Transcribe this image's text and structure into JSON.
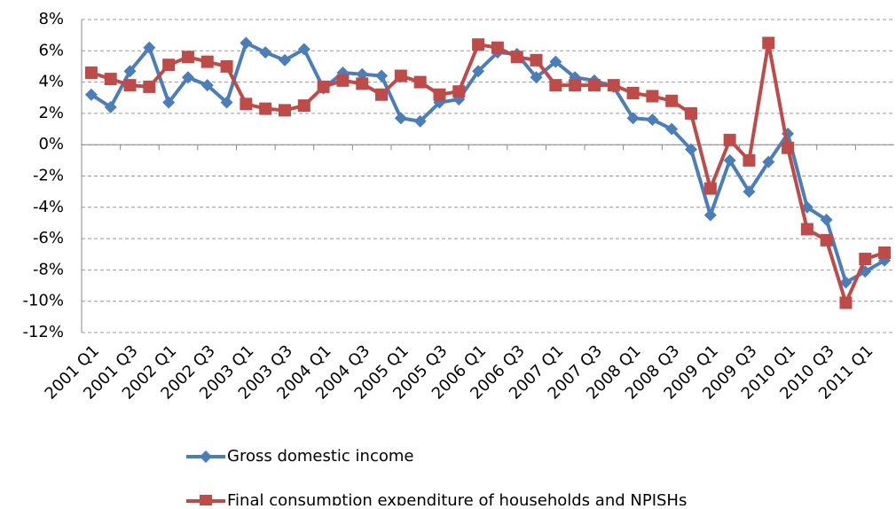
{
  "chart_data": {
    "type": "line",
    "categories": [
      "2001 Q1",
      null,
      "2001 Q3",
      null,
      "2002 Q1",
      null,
      "2002 Q3",
      null,
      "2003 Q1",
      null,
      "2003 Q3",
      null,
      "2004 Q1",
      null,
      "2004 Q3",
      null,
      "2005 Q1",
      null,
      "2005 Q3",
      null,
      "2006 Q1",
      null,
      "2006 Q3",
      null,
      "2007 Q1",
      null,
      "2007 Q3",
      null,
      "2008 Q1",
      null,
      "2008 Q3",
      null,
      "2009 Q1",
      null,
      "2009 Q3",
      null,
      "2010 Q1",
      null,
      "2010 Q3",
      null,
      "2011 Q1",
      null
    ],
    "series": [
      {
        "name": "Gross domestic income",
        "color": "#4a7ebb",
        "marker": "diamond",
        "values": [
          3.2,
          2.4,
          4.7,
          6.2,
          2.7,
          4.3,
          3.8,
          2.7,
          6.5,
          5.9,
          5.4,
          6.1,
          3.6,
          4.6,
          4.5,
          4.4,
          1.7,
          1.5,
          2.7,
          2.9,
          4.7,
          5.9,
          5.8,
          4.3,
          5.3,
          4.3,
          4.1,
          3.7,
          1.7,
          1.6,
          1.0,
          -0.3,
          -4.5,
          -1.0,
          -3.0,
          -1.1,
          0.7,
          -4.0,
          -4.8,
          -8.8,
          -8.1,
          -7.4
        ]
      },
      {
        "name": "Final consumption expenditure of households and NPISHs",
        "color": "#be4b48",
        "marker": "square",
        "values": [
          4.6,
          4.2,
          3.8,
          3.7,
          5.1,
          5.6,
          5.3,
          5.0,
          2.6,
          2.3,
          2.2,
          2.5,
          3.7,
          4.1,
          3.9,
          3.2,
          4.4,
          4.0,
          3.2,
          3.4,
          6.4,
          6.2,
          5.6,
          5.4,
          3.8,
          3.8,
          3.8,
          3.8,
          3.3,
          3.1,
          2.8,
          2.0,
          -2.8,
          0.3,
          -1.0,
          6.5,
          -0.2,
          -5.4,
          -6.1,
          -10.1,
          -7.3,
          -6.9
        ]
      }
    ],
    "ylim": [
      -12,
      8
    ],
    "yticks": [
      {
        "value": -12,
        "label": "-12%"
      },
      {
        "value": -10,
        "label": "-10%"
      },
      {
        "value": -8,
        "label": "-8%"
      },
      {
        "value": -6,
        "label": "-6%"
      },
      {
        "value": -4,
        "label": "-4%"
      },
      {
        "value": -2,
        "label": "-2%"
      },
      {
        "value": 0,
        "label": "0%"
      },
      {
        "value": 2,
        "label": "2%"
      },
      {
        "value": 4,
        "label": "4%"
      },
      {
        "value": 6,
        "label": "6%"
      },
      {
        "value": 8,
        "label": "8%"
      }
    ],
    "grid": true,
    "legend": "bottom"
  }
}
